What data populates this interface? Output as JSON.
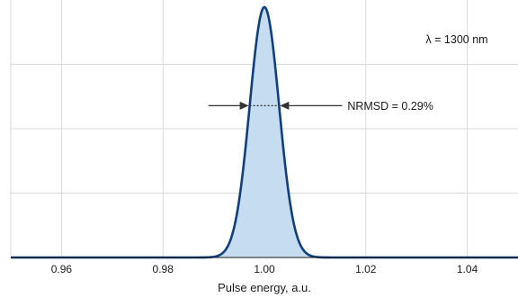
{
  "chart_data": {
    "type": "area",
    "title": "",
    "xlabel": "Pulse energy, a.u.",
    "ylabel": "",
    "xlim": [
      0.95,
      1.05
    ],
    "ylim": [
      0,
      1.0
    ],
    "xticks": [
      0.96,
      0.98,
      1.0,
      1.02,
      1.04
    ],
    "xtick_labels": [
      "0.96",
      "0.98",
      "1.00",
      "1.02",
      "1.04"
    ],
    "yticks": [
      0.25,
      0.5,
      0.75
    ],
    "grid": true,
    "series": [
      {
        "center": 1.0,
        "nrmsd": 0.0029,
        "peak": 1.0
      }
    ],
    "annotations": {
      "wavelength": "λ = 1300 nm",
      "nrmsd": "NRMSD = 0.29%"
    },
    "colors": {
      "line": "#0f3f7f",
      "fill": "#c6dcf0",
      "grid": "#d9d9d9",
      "arrow": "#333333"
    }
  }
}
